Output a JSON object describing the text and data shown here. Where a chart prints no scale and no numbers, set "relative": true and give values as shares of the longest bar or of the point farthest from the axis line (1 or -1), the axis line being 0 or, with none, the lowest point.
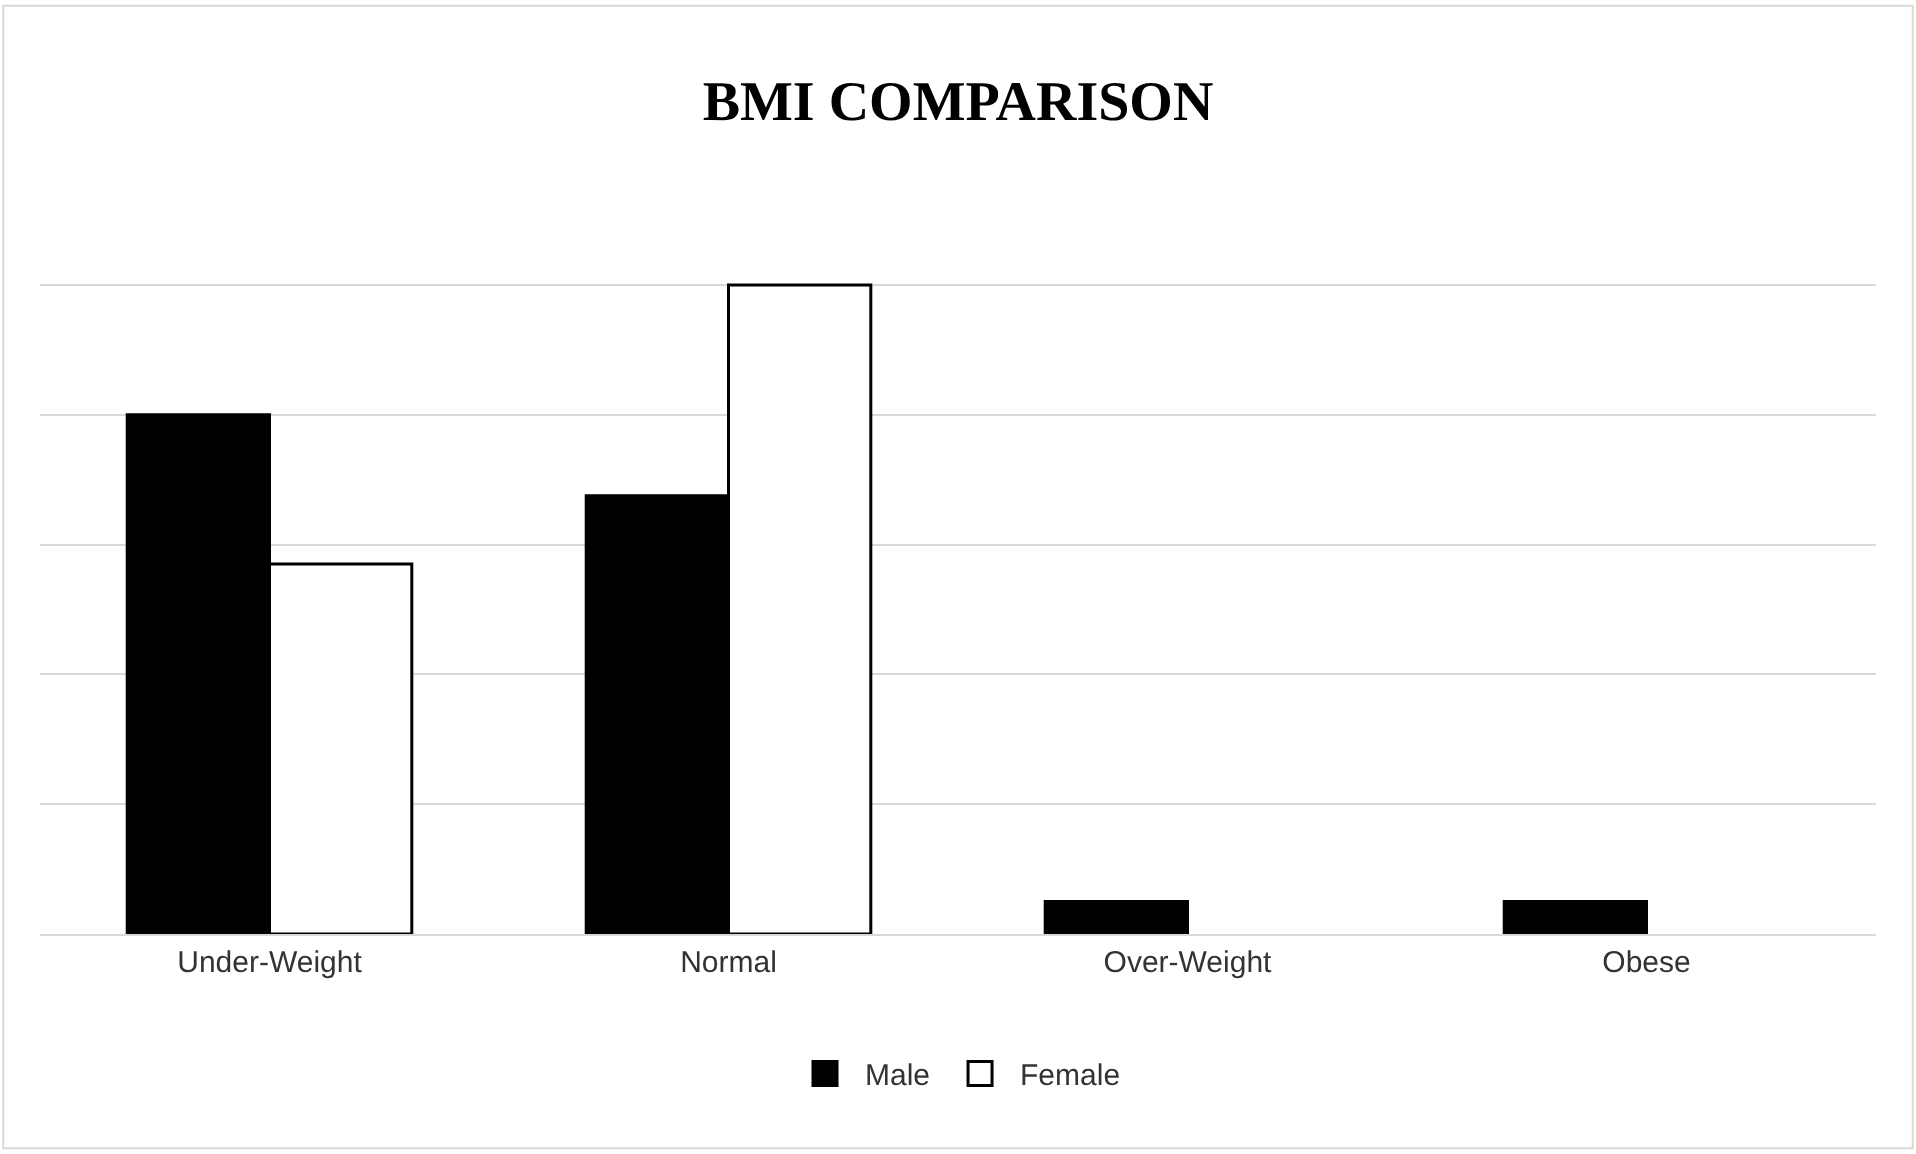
{
  "chart_data": {
    "type": "bar",
    "title": "BMI COMPARISON",
    "relative": true,
    "categories": [
      "Under-Weight",
      "Normal",
      "Over-Weight",
      "Obese"
    ],
    "series": [
      {
        "name": "Male",
        "color": "#000000",
        "values": [
          0.8,
          0.675,
          0.05,
          0.05
        ]
      },
      {
        "name": "Female",
        "color": "#ffffff",
        "values": [
          0.57,
          1,
          null,
          null
        ]
      }
    ],
    "grid": "y",
    "legend": "bottom"
  }
}
